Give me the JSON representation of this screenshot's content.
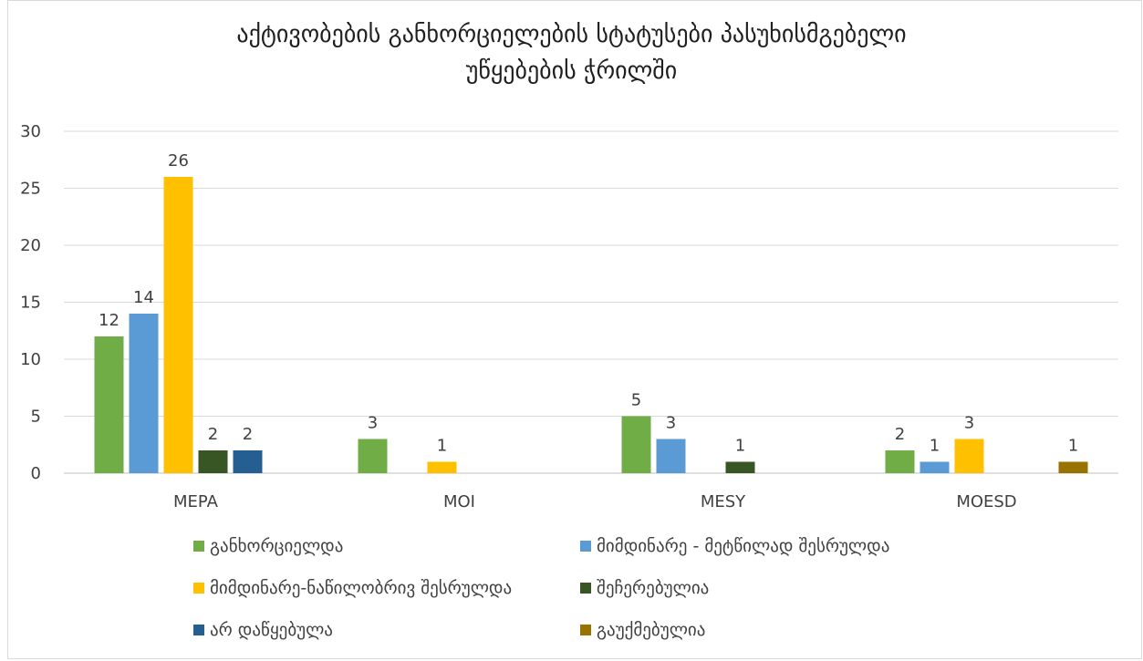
{
  "chart_data": {
    "type": "bar",
    "title_lines": [
      "აქტივობების განხორციელების სტატუსები პასუხისმგებელი",
      "უწყებების ჭრილში"
    ],
    "categories": [
      "MEPA",
      "MOI",
      "MESY",
      "MOESD"
    ],
    "ylim": [
      0,
      30
    ],
    "yticks": [
      0,
      5,
      10,
      15,
      20,
      25,
      30
    ],
    "grid": true,
    "legend_position": "bottom",
    "series": [
      {
        "name": "განხორციელდა",
        "color": "#70ad47",
        "values": [
          12,
          3,
          5,
          2
        ]
      },
      {
        "name": "მიმდინარე - მეტწილად შესრულდა",
        "color": "#5b9bd5",
        "values": [
          14,
          null,
          3,
          1
        ]
      },
      {
        "name": "მიმდინარე-ნაწილობრივ შესრულდა",
        "color": "#ffc000",
        "values": [
          26,
          1,
          null,
          3
        ]
      },
      {
        "name": "შეჩერებულია",
        "color": "#375623",
        "values": [
          2,
          null,
          1,
          null
        ]
      },
      {
        "name": "არ დაწყებულა",
        "color": "#255e91",
        "values": [
          2,
          null,
          null,
          null
        ]
      },
      {
        "name": "გაუქმებულია",
        "color": "#997300",
        "values": [
          null,
          null,
          null,
          1
        ]
      }
    ]
  }
}
